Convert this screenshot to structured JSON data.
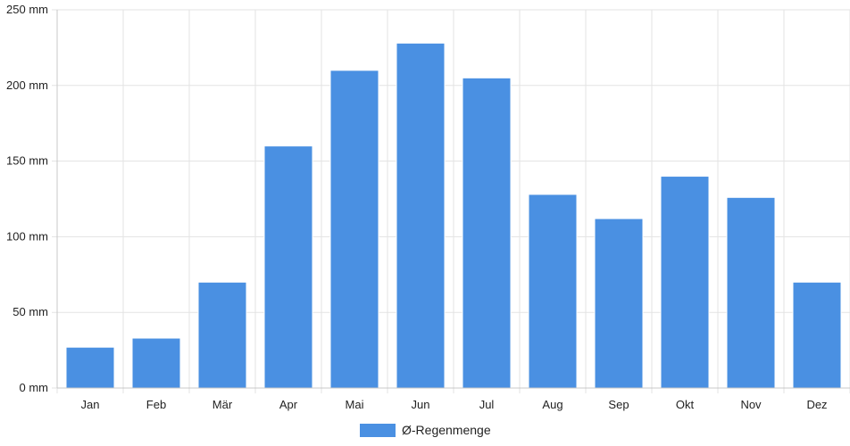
{
  "chart_data": {
    "type": "bar",
    "categories": [
      "Jan",
      "Feb",
      "Mär",
      "Apr",
      "Mai",
      "Jun",
      "Jul",
      "Aug",
      "Sep",
      "Okt",
      "Nov",
      "Dez"
    ],
    "series": [
      {
        "name": "Ø-Regenmenge",
        "values": [
          27,
          33,
          70,
          160,
          210,
          228,
          205,
          128,
          112,
          140,
          126,
          70
        ],
        "color": "#4a90e2"
      }
    ],
    "y_ticks": [
      "0 mm",
      "50 mm",
      "100 mm",
      "150 mm",
      "200 mm",
      "250 mm"
    ],
    "ylim": [
      0,
      250
    ],
    "grid": true,
    "legend_position": "bottom"
  }
}
